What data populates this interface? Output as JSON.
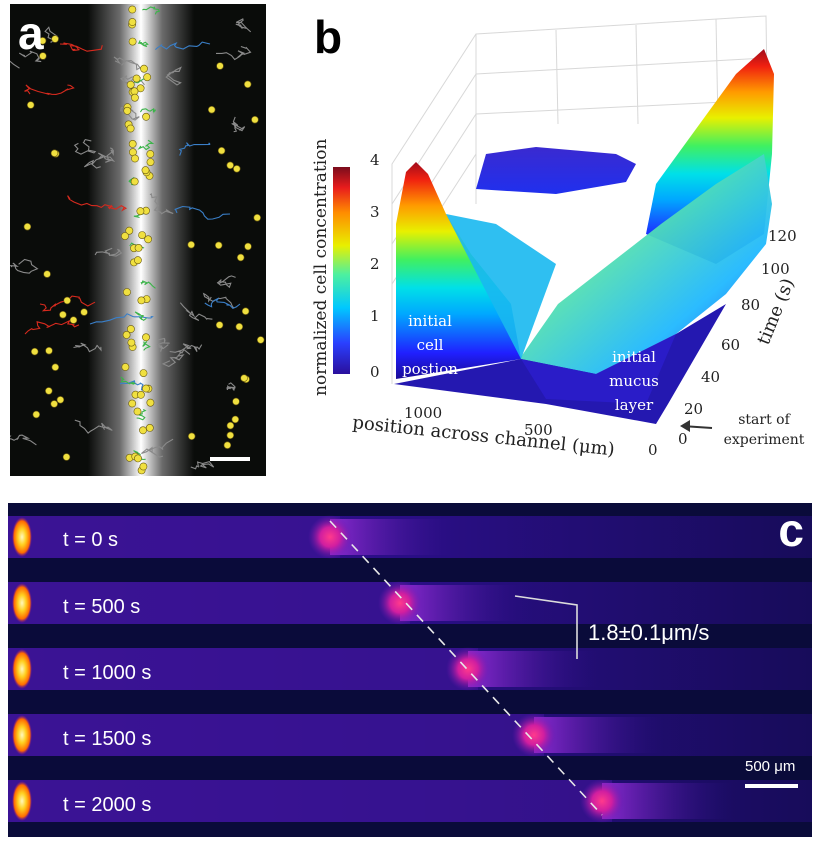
{
  "panels": {
    "a": {
      "letter": "a"
    },
    "b": {
      "letter": "b",
      "z_label": "normalized cell concentration",
      "z_ticks": [
        "4",
        "3",
        "2",
        "1",
        "0"
      ],
      "x_label": "position across channel (μm)",
      "x_ticks": [
        "1000",
        "500",
        "0"
      ],
      "y_label": "time (s)",
      "y_ticks": [
        "0",
        "20",
        "40",
        "60",
        "80",
        "100",
        "120"
      ],
      "annot_cell": [
        "initial",
        "cell",
        "postion"
      ],
      "annot_mucus": [
        "initial",
        "mucus",
        "layer"
      ],
      "annot_start": [
        "start of",
        "experiment"
      ]
    },
    "c": {
      "letter": "c",
      "strip_labels": [
        "t = 0 s",
        "t = 500 s",
        "t = 1000 s",
        "t = 1500 s",
        "t = 2000 s"
      ],
      "speed_label": "1.8±0.1μm/s",
      "scale_label": "500 μm"
    }
  },
  "colors": {
    "cells": "#f0e040",
    "track_red": "#d62a1e",
    "track_blue": "#3a7fc8",
    "track_green": "#3cb44a",
    "track_gray": "#8a8a8a"
  }
}
